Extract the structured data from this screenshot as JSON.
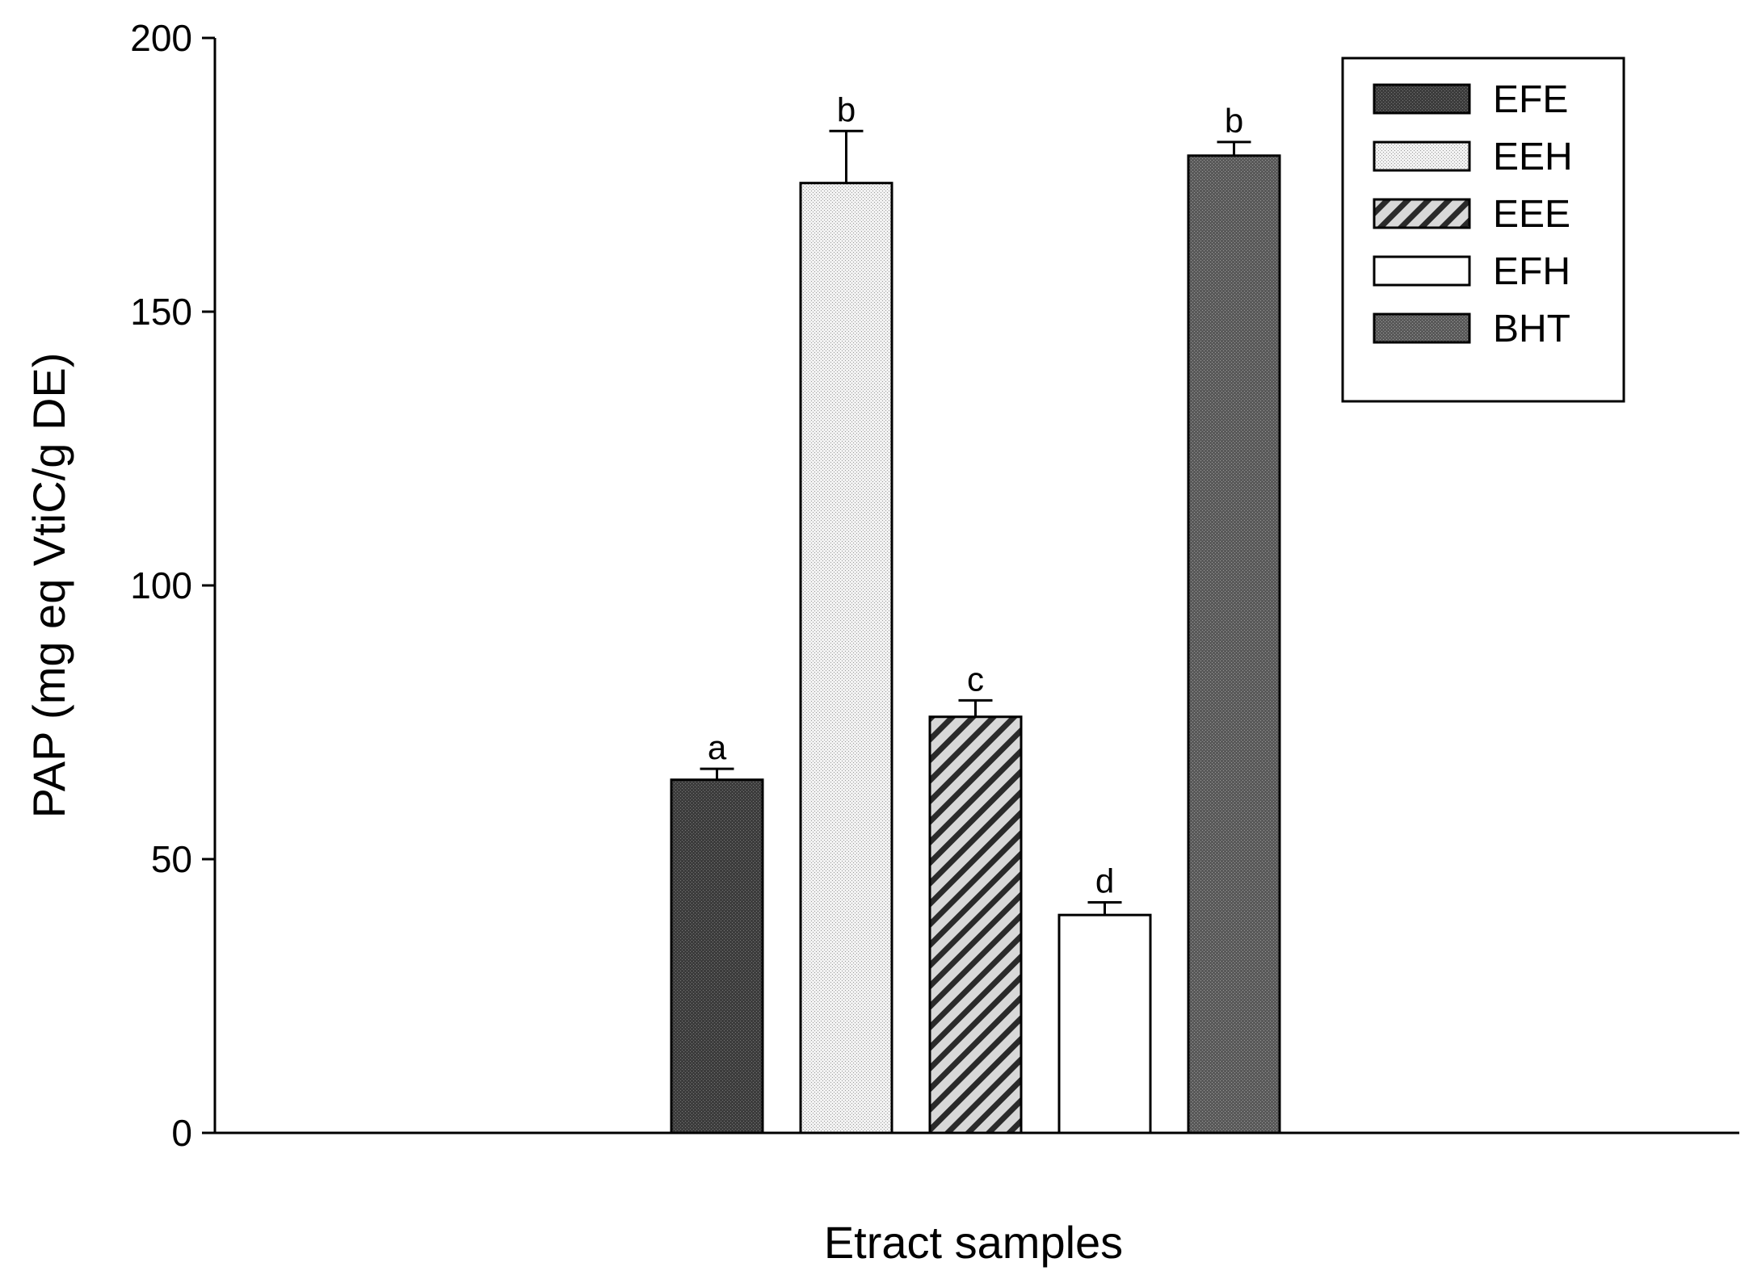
{
  "chart_data": {
    "type": "bar",
    "title": "",
    "xlabel": "Etract samples",
    "ylabel": "PAP (mg eq VtiC/g DE)",
    "ylim": [
      0,
      200
    ],
    "yticks": [
      "0",
      "50",
      "100",
      "150",
      "200"
    ],
    "grid": false,
    "legend_position": "top-right",
    "series": [
      {
        "name": "EFE",
        "value": 64.5,
        "error": 2.0,
        "letter": "a",
        "fill": "dark-stipple",
        "color": "#4a4a4a"
      },
      {
        "name": "EEH",
        "value": 173.5,
        "error": 9.5,
        "letter": "b",
        "fill": "light-stipple",
        "color": "#e6e6e6"
      },
      {
        "name": "EEE",
        "value": 76.0,
        "error": 3.0,
        "letter": "c",
        "fill": "diagonal-hatch",
        "color": "#bfbfbf"
      },
      {
        "name": "EFH",
        "value": 39.8,
        "error": 2.3,
        "letter": "d",
        "fill": "white",
        "color": "#ffffff"
      },
      {
        "name": "BHT",
        "value": 178.5,
        "error": 2.5,
        "letter": "b",
        "fill": "mid-stipple",
        "color": "#666666"
      }
    ]
  }
}
